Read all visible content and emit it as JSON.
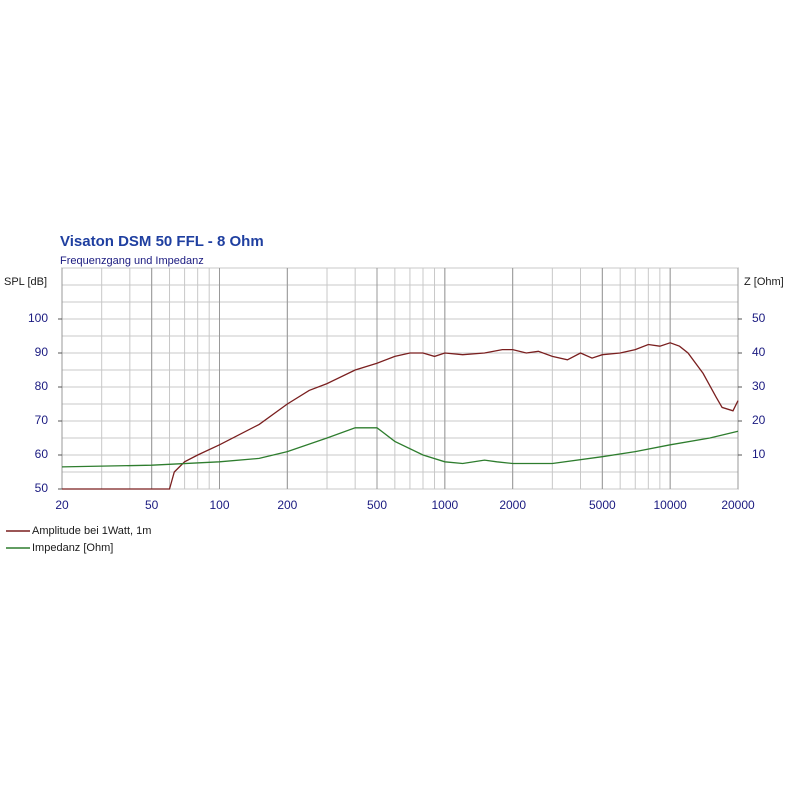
{
  "chart_data": {
    "type": "line",
    "title": "Visaton DSM 50 FFL - 8 Ohm",
    "subtitle": "Frequenzgang und Impedanz",
    "y_label": "SPL [dB]",
    "y2_label": "Z [Ohm]",
    "xscale": "log",
    "xlim": [
      20,
      20000
    ],
    "xticks": [
      20,
      50,
      100,
      200,
      500,
      1000,
      2000,
      5000,
      10000,
      20000
    ],
    "xgrid": [
      20,
      30,
      40,
      50,
      60,
      70,
      80,
      90,
      100,
      200,
      300,
      400,
      500,
      600,
      700,
      800,
      900,
      1000,
      2000,
      3000,
      4000,
      5000,
      6000,
      7000,
      8000,
      9000,
      10000,
      20000
    ],
    "ylim": [
      50,
      115
    ],
    "yticks": [
      50,
      60,
      70,
      80,
      90,
      100
    ],
    "ygrid": [
      50,
      55,
      60,
      65,
      70,
      75,
      80,
      85,
      90,
      95,
      100,
      105,
      110,
      115
    ],
    "y2lim": [
      0,
      65
    ],
    "y2ticks": [
      10,
      20,
      30,
      40,
      50
    ],
    "grid": true,
    "series": [
      {
        "name": "Amplitude bei 1Watt, 1m",
        "color": "#7a1f1f",
        "x": [
          20,
          60,
          63,
          70,
          80,
          100,
          150,
          200,
          250,
          300,
          400,
          500,
          600,
          700,
          800,
          900,
          1000,
          1200,
          1500,
          1800,
          2000,
          2300,
          2600,
          3000,
          3500,
          4000,
          4500,
          5000,
          6000,
          7000,
          8000,
          9000,
          10000,
          11000,
          12000,
          14000,
          16000,
          17000,
          19000,
          20000
        ],
        "values": [
          50,
          50,
          55,
          58,
          60,
          63,
          69,
          75,
          79,
          81,
          85,
          87,
          89,
          90,
          90,
          89,
          90,
          89.5,
          90,
          91,
          91,
          90,
          90.5,
          89,
          88,
          90,
          88.5,
          89.5,
          90,
          91,
          92.5,
          92,
          93,
          92,
          90,
          84,
          77,
          74,
          73,
          76
        ]
      },
      {
        "name": "Impedanz [Ohm]",
        "color": "#2e7d2e",
        "axis": "y2",
        "x": [
          20,
          50,
          100,
          150,
          200,
          300,
          400,
          500,
          600,
          800,
          1000,
          1200,
          1500,
          1700,
          2000,
          3000,
          5000,
          7000,
          10000,
          15000,
          20000
        ],
        "values": [
          6.5,
          7,
          8,
          9,
          11,
          15,
          18,
          18,
          14,
          10,
          8,
          7.5,
          8.5,
          8,
          7.5,
          7.5,
          9.5,
          11,
          13,
          15,
          17
        ]
      }
    ]
  }
}
